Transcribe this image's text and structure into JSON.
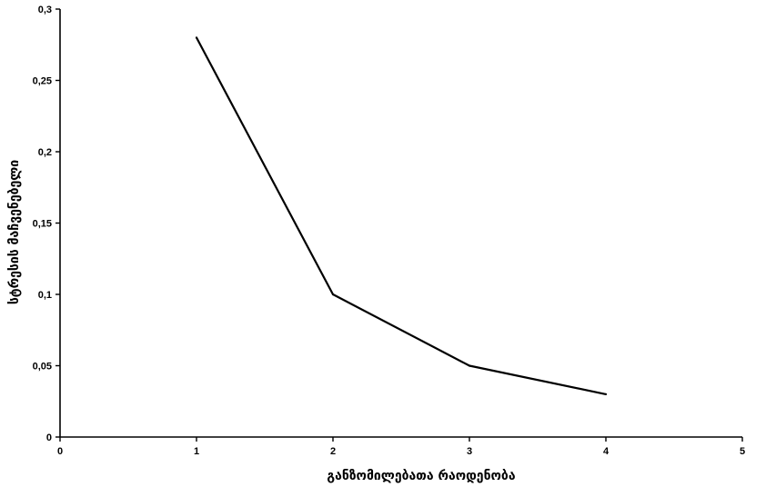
{
  "chart_data": {
    "type": "line",
    "title": "",
    "xlabel": "განზომილებათა რაოდენობა",
    "ylabel": "სტრესის მაჩვენებელი",
    "xlim": [
      0,
      5
    ],
    "ylim": [
      0,
      0.3
    ],
    "x_ticks": [
      {
        "value": 0,
        "label": "0"
      },
      {
        "value": 1,
        "label": "1"
      },
      {
        "value": 2,
        "label": "2"
      },
      {
        "value": 3,
        "label": "3"
      },
      {
        "value": 4,
        "label": "4"
      },
      {
        "value": 5,
        "label": "5"
      }
    ],
    "y_ticks": [
      {
        "value": 0,
        "label": "0"
      },
      {
        "value": 0.05,
        "label": "0,05"
      },
      {
        "value": 0.1,
        "label": "0,1"
      },
      {
        "value": 0.15,
        "label": "0,15"
      },
      {
        "value": 0.2,
        "label": "0,2"
      },
      {
        "value": 0.25,
        "label": "0,25"
      },
      {
        "value": 0.3,
        "label": "0,3"
      }
    ],
    "grid": false,
    "legend": "none",
    "series": [
      {
        "x": [
          1,
          2,
          3,
          4
        ],
        "values": [
          0.28,
          0.1,
          0.05,
          0.03
        ],
        "color": "#000000"
      }
    ]
  }
}
